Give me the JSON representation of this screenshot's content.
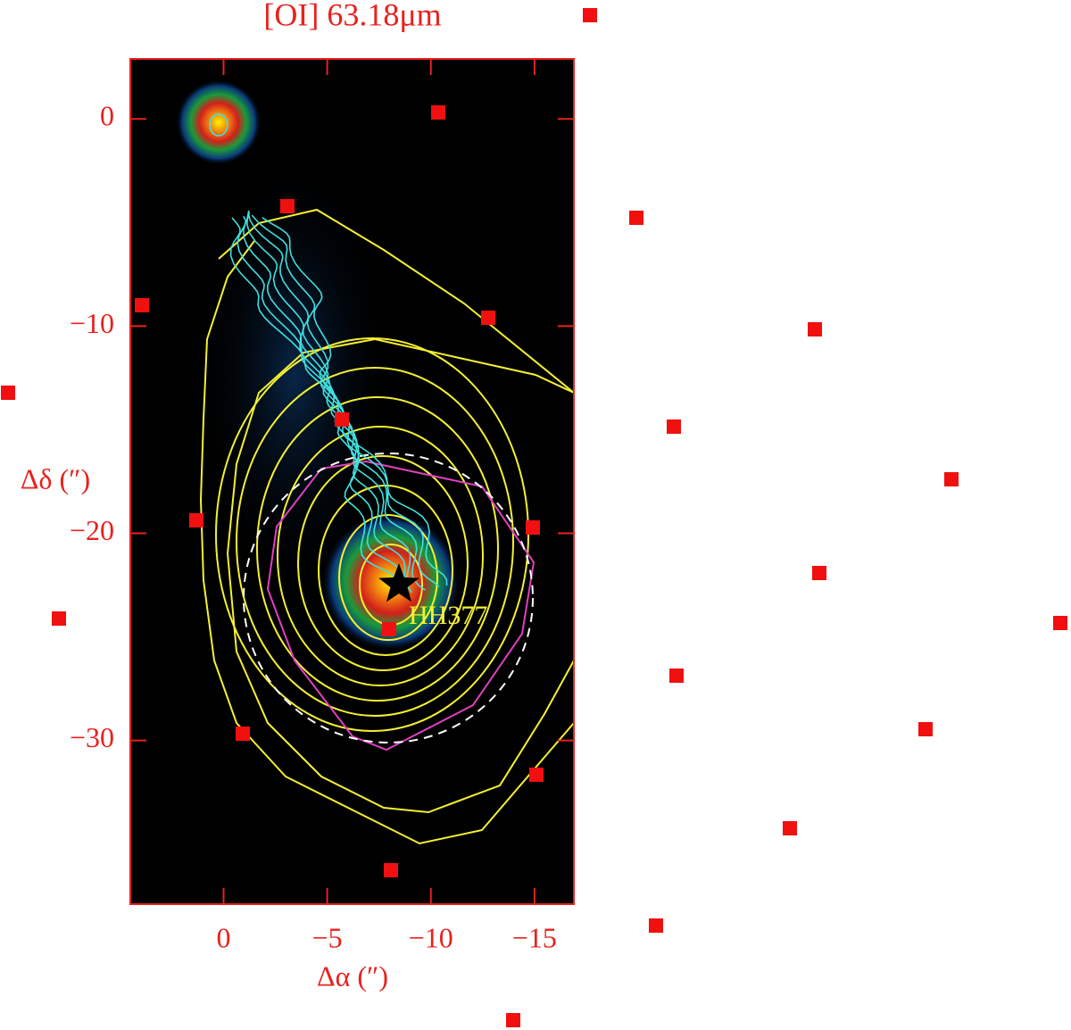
{
  "chart_data": {
    "type": "map",
    "title": "[OI] 63.18μm",
    "xlabel": "Δα (″)",
    "ylabel": "Δδ (″)",
    "xlim": [
      4.5,
      -16.9
    ],
    "ylim": [
      -37.9,
      2.9
    ],
    "xticks": [
      0,
      {
        "value": -5,
        "label": "−5"
      },
      {
        "value": -10,
        "label": "−10"
      },
      {
        "value": -15,
        "label": "−15"
      }
    ],
    "yticks": [
      0,
      {
        "value": -10,
        "label": "−10"
      },
      {
        "value": -20,
        "label": "−20"
      },
      {
        "value": -30,
        "label": "−30"
      }
    ],
    "annotation": "HH377",
    "color": "#e8211e"
  }
}
